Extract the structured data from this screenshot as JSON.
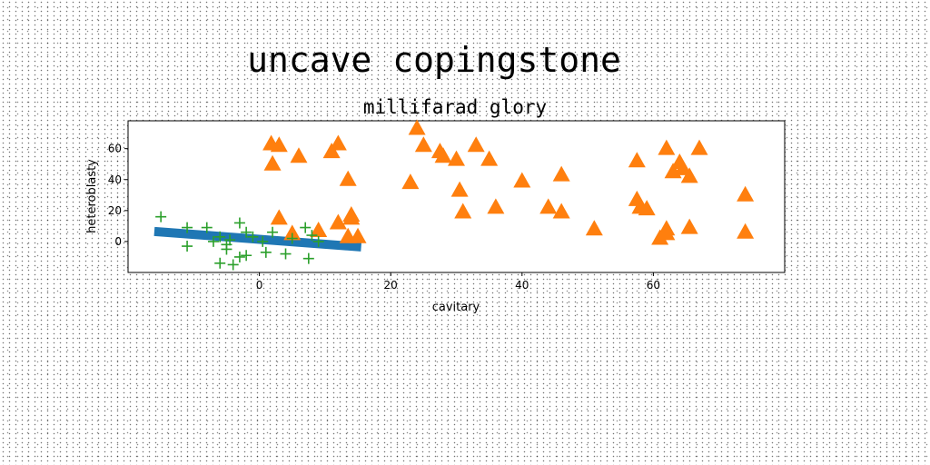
{
  "figure": {
    "suptitle": "uncave copingstone"
  },
  "chart_data": {
    "type": "scatter",
    "title": "millifarad glory",
    "xlabel": "cavitary",
    "ylabel": "heteroblasty",
    "xlim": [
      -20,
      80
    ],
    "ylim": [
      -20,
      78
    ],
    "xticks": [
      0,
      20,
      40,
      60
    ],
    "yticks": [
      0,
      20,
      40,
      60
    ],
    "grid": false,
    "legend": "none",
    "series": [
      {
        "marker": "thick-line",
        "color": "#1f77b4",
        "x": [
          -16,
          15.5
        ],
        "y": [
          6.5,
          -3.5
        ]
      },
      {
        "marker": "triangle",
        "color": "#ff7f0e",
        "x": [
          1.8,
          3,
          2,
          6,
          11,
          12,
          13.5,
          3,
          9,
          12,
          14,
          14,
          13.5,
          15,
          5,
          24,
          25,
          23,
          27.5,
          28,
          30,
          30.5,
          31,
          33,
          35,
          36,
          40,
          44,
          46,
          46,
          51,
          57.5,
          57.5,
          58,
          59,
          61,
          62,
          62,
          62,
          63,
          64,
          64.5,
          65.5,
          65.5,
          67,
          74,
          74
        ],
        "y": [
          63,
          62,
          50,
          55,
          58,
          63,
          40,
          15,
          7,
          12,
          15,
          17,
          3,
          3,
          5,
          73,
          62,
          38,
          58,
          55,
          53,
          33,
          19,
          62,
          53,
          22,
          39,
          22,
          43,
          19,
          8,
          52,
          27,
          22,
          21,
          2,
          60,
          8,
          5,
          45,
          51,
          47,
          9,
          42,
          60,
          6,
          30
        ]
      },
      {
        "marker": "plus",
        "color": "#2ca02c",
        "x": [
          -15,
          -11,
          -11,
          -8,
          -7,
          -6,
          -5,
          -5,
          -4,
          -3,
          -3,
          -2,
          -2,
          -1,
          0.5,
          1,
          2,
          4,
          5,
          7,
          7.5,
          8,
          9,
          -6,
          -4.5
        ],
        "y": [
          16,
          9,
          -3,
          9,
          0,
          -14,
          -2,
          -5,
          -15,
          12,
          -10,
          -9,
          6,
          3,
          0,
          -7,
          6,
          -8,
          2,
          9,
          -11,
          4,
          0,
          3,
          1
        ]
      }
    ]
  }
}
